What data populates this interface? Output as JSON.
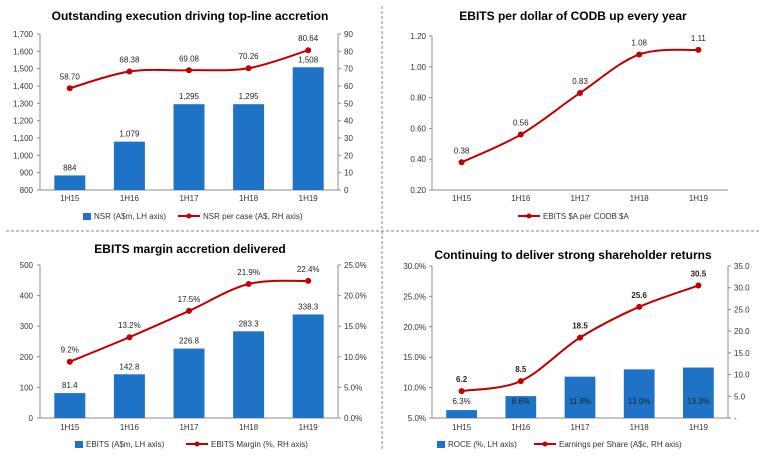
{
  "colors": {
    "bar": "#1f73c6",
    "line": "#c00000",
    "axis": "#8c8c8c"
  },
  "chart_data": [
    {
      "type": "bar",
      "title": "Outstanding execution driving top-line accretion",
      "categories": [
        "1H15",
        "1H16",
        "1H17",
        "1H18",
        "1H19"
      ],
      "series": [
        {
          "name": "NSR (A$m, LH axis)",
          "type": "bar",
          "axis": "left",
          "values": [
            884,
            1079,
            1295,
            1295,
            1508
          ],
          "labels": [
            "884",
            "1,079",
            "1,295",
            "1,295",
            "1,508"
          ]
        },
        {
          "name": "NSR per case (A$, RH axis)",
          "type": "line",
          "axis": "right",
          "values": [
            58.7,
            68.38,
            69.08,
            70.26,
            80.64
          ],
          "labels": [
            "58.70",
            "68.38",
            "69.08",
            "70.26",
            "80.64"
          ]
        }
      ],
      "y_left": {
        "min": 800,
        "max": 1700,
        "ticks": [
          800,
          900,
          1000,
          1100,
          1200,
          1300,
          1400,
          1500,
          1600,
          1700
        ],
        "tick_labels": [
          "800",
          "900",
          "1,000",
          "1,100",
          "1,200",
          "1,300",
          "1,400",
          "1,500",
          "1,600",
          "1,700"
        ]
      },
      "y_right": {
        "min": 0,
        "max": 90,
        "ticks": [
          0,
          10,
          20,
          30,
          40,
          50,
          60,
          70,
          80,
          90
        ],
        "tick_labels": [
          "0",
          "10",
          "20",
          "30",
          "40",
          "50",
          "60",
          "70",
          "80",
          "90"
        ]
      },
      "legend_position": "bottom"
    },
    {
      "type": "line",
      "title": "EBITS per dollar of CODB up every year",
      "categories": [
        "1H15",
        "1H16",
        "1H17",
        "1H18",
        "1H19"
      ],
      "series": [
        {
          "name": "EBITS $A per CODB $A",
          "type": "line",
          "axis": "left",
          "values": [
            0.38,
            0.56,
            0.83,
            1.08,
            1.11
          ],
          "labels": [
            "0.38",
            "0.56",
            "0.83",
            "1.08",
            "1.11"
          ]
        }
      ],
      "y_left": {
        "min": 0.2,
        "max": 1.2,
        "ticks": [
          0.2,
          0.4,
          0.6,
          0.8,
          1.0,
          1.2
        ],
        "tick_labels": [
          "0.20",
          "0.40",
          "0.60",
          "0.80",
          "1.00",
          "1.20"
        ]
      },
      "legend_position": "bottom"
    },
    {
      "type": "bar",
      "title": "EBITS margin accretion delivered",
      "categories": [
        "1H15",
        "1H16",
        "1H17",
        "1H18",
        "1H19"
      ],
      "series": [
        {
          "name": "EBITS (A$m, LH axis)",
          "type": "bar",
          "axis": "left",
          "values": [
            81.4,
            142.8,
            226.8,
            283.3,
            338.3
          ],
          "labels": [
            "81.4",
            "142.8",
            "226.8",
            "283.3",
            "338.3"
          ]
        },
        {
          "name": "EBITS Margin (%, RH axis)",
          "type": "line",
          "axis": "right",
          "values": [
            9.2,
            13.2,
            17.5,
            21.9,
            22.4
          ],
          "labels": [
            "9.2%",
            "13.2%",
            "17.5%",
            "21.9%",
            "22.4%"
          ]
        }
      ],
      "y_left": {
        "min": 0,
        "max": 500,
        "ticks": [
          0,
          100,
          200,
          300,
          400,
          500
        ],
        "tick_labels": [
          "0",
          "100",
          "200",
          "300",
          "400",
          "500"
        ]
      },
      "y_right": {
        "min": 0,
        "max": 25,
        "ticks": [
          0,
          5,
          10,
          15,
          20,
          25
        ],
        "tick_labels": [
          "0.0%",
          "5.0%",
          "10.0%",
          "15.0%",
          "20.0%",
          "25.0%"
        ]
      },
      "legend_position": "bottom"
    },
    {
      "type": "bar",
      "title": "Continuing to deliver strong shareholder returns",
      "categories": [
        "1H15",
        "1H16",
        "1H17",
        "1H18",
        "1H19"
      ],
      "series": [
        {
          "name": "ROCE (%, LH axis)",
          "type": "bar",
          "axis": "left",
          "values": [
            6.3,
            8.6,
            11.8,
            13.0,
            13.3
          ],
          "labels": [
            "6.3%",
            "8.6%",
            "11.8%",
            "13.0%",
            "13.3%"
          ]
        },
        {
          "name": "Earnings per Share (A$c, RH axis)",
          "type": "line",
          "axis": "right",
          "values": [
            6.2,
            8.5,
            18.5,
            25.6,
            30.5
          ],
          "labels": [
            "6.2",
            "8.5",
            "18.5",
            "25.6",
            "30.5"
          ]
        }
      ],
      "y_left": {
        "min": 5,
        "max": 30,
        "ticks": [
          5,
          10,
          15,
          20,
          25,
          30
        ],
        "tick_labels": [
          "5.0%",
          "10.0%",
          "15.0%",
          "20.0%",
          "25.0%",
          "30.0%"
        ]
      },
      "y_right": {
        "min": 0,
        "max": 35,
        "ticks": [
          0,
          5,
          10,
          15,
          20,
          25,
          30,
          35
        ],
        "tick_labels": [
          "-",
          "5.0",
          "10.0",
          "15.0",
          "20.0",
          "25.0",
          "30.0",
          "35.0"
        ]
      },
      "legend_position": "bottom"
    }
  ]
}
